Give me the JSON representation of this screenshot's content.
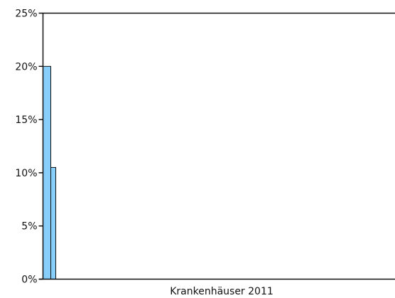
{
  "chart_data": {
    "type": "bar",
    "xlabel": "Krankenhäuser 2011",
    "ylim": [
      0,
      25
    ],
    "y_ticks": [
      0,
      5,
      10,
      15,
      20,
      25
    ],
    "y_tick_labels": [
      "0%",
      "5%",
      "10%",
      "15%",
      "20%",
      "25%"
    ],
    "series": [
      {
        "values": [
          20.0,
          10.5
        ]
      }
    ],
    "bar_color": "#87CEFA",
    "bar_stroke": "#111111",
    "grid": false,
    "frame": "top and left axes; bottom baseline"
  }
}
